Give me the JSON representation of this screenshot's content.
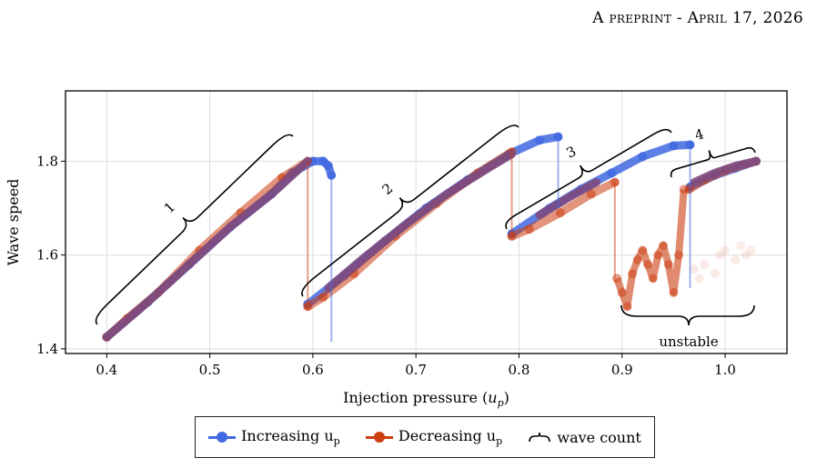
{
  "header": {
    "text": "A preprint - April 17, 2026"
  },
  "chart_data": {
    "type": "scatter",
    "title": "",
    "xlabel": "Injection pressure (u_p)",
    "ylabel": "Wave speed",
    "xlim": [
      0.36,
      1.06
    ],
    "ylim": [
      1.39,
      1.95
    ],
    "xticks": [
      "0.4",
      "0.5",
      "0.6",
      "0.7",
      "0.8",
      "0.9",
      "1.0"
    ],
    "yticks": [
      "1.4",
      "1.6",
      "1.8"
    ],
    "grid": true,
    "legend_position": "bottom",
    "colors": {
      "increasing": "#4169e1",
      "decreasing": "#cc3d10",
      "overlap": "#7d4a7e"
    },
    "series": [
      {
        "name": "Increasing u_p",
        "branches": [
          {
            "x": [
              0.4,
              0.44,
              0.48,
              0.52,
              0.56,
              0.58,
              0.6,
              0.61,
              0.615,
              0.618
            ],
            "y": [
              1.425,
              1.5,
              1.58,
              1.66,
              1.73,
              1.775,
              1.8,
              1.8,
              1.79,
              1.77
            ]
          },
          {
            "x": [
              0.595,
              0.63,
              0.67,
              0.71,
              0.75,
              0.79,
              0.82,
              0.838
            ],
            "y": [
              1.495,
              1.555,
              1.63,
              1.7,
              1.76,
              1.815,
              1.845,
              1.852
            ]
          },
          {
            "x": [
              0.793,
              0.83,
              0.86,
              0.89,
              0.92,
              0.95,
              0.966
            ],
            "y": [
              1.645,
              1.7,
              1.74,
              1.775,
              1.81,
              1.833,
              1.835
            ]
          },
          {
            "x": [
              0.966,
              0.99,
              1.01,
              1.03
            ],
            "y": [
              1.745,
              1.77,
              1.785,
              1.8
            ]
          }
        ]
      },
      {
        "name": "Decreasing u_p",
        "branches": [
          {
            "x": [
              1.03,
              1.0,
              0.98,
              0.965
            ],
            "y": [
              1.8,
              1.78,
              1.76,
              1.74
            ]
          },
          {
            "x": [
              0.893,
              0.87,
              0.84,
              0.81,
              0.793
            ],
            "y": [
              1.755,
              1.73,
              1.69,
              1.655,
              1.64
            ]
          },
          {
            "x": [
              0.793,
              0.76,
              0.72,
              0.68,
              0.64,
              0.61,
              0.595
            ],
            "y": [
              1.82,
              1.775,
              1.71,
              1.64,
              1.56,
              1.51,
              1.49
            ]
          },
          {
            "x": [
              0.595,
              0.57,
              0.53,
              0.49,
              0.45,
              0.42,
              0.4
            ],
            "y": [
              1.8,
              1.765,
              1.69,
              1.61,
              1.52,
              1.465,
              1.425
            ]
          }
        ],
        "unstable": {
          "x": [
            0.895,
            0.9,
            0.905,
            0.91,
            0.915,
            0.92,
            0.925,
            0.93,
            0.935,
            0.94,
            0.945,
            0.95,
            0.955,
            0.96
          ],
          "y": [
            1.55,
            1.52,
            1.49,
            1.56,
            1.59,
            1.61,
            1.58,
            1.55,
            1.6,
            1.62,
            1.58,
            1.52,
            1.6,
            1.74
          ]
        }
      }
    ],
    "faded_points": {
      "x": [
        0.97,
        0.98,
        0.99,
        1.0,
        1.01,
        1.02,
        1.025,
        0.975,
        0.995,
        1.015
      ],
      "y": [
        1.57,
        1.58,
        1.56,
        1.61,
        1.59,
        1.6,
        1.61,
        1.55,
        1.6,
        1.62
      ]
    },
    "annotations": [
      {
        "label": "1",
        "x": 0.46,
        "y": 1.68
      },
      {
        "label": "2",
        "x": 0.685,
        "y": 1.76
      },
      {
        "label": "3",
        "x": 0.855,
        "y": 1.815
      },
      {
        "label": "4",
        "x": 0.98,
        "y": 1.855
      },
      {
        "label": "unstable",
        "x": 0.955,
        "y": 1.405
      }
    ]
  },
  "legend": {
    "items": [
      {
        "label": "Increasing u",
        "sub": "p",
        "kind": "increasing"
      },
      {
        "label": "Decreasing u",
        "sub": "p",
        "kind": "decreasing"
      },
      {
        "label": "wave count",
        "kind": "brace"
      }
    ]
  }
}
